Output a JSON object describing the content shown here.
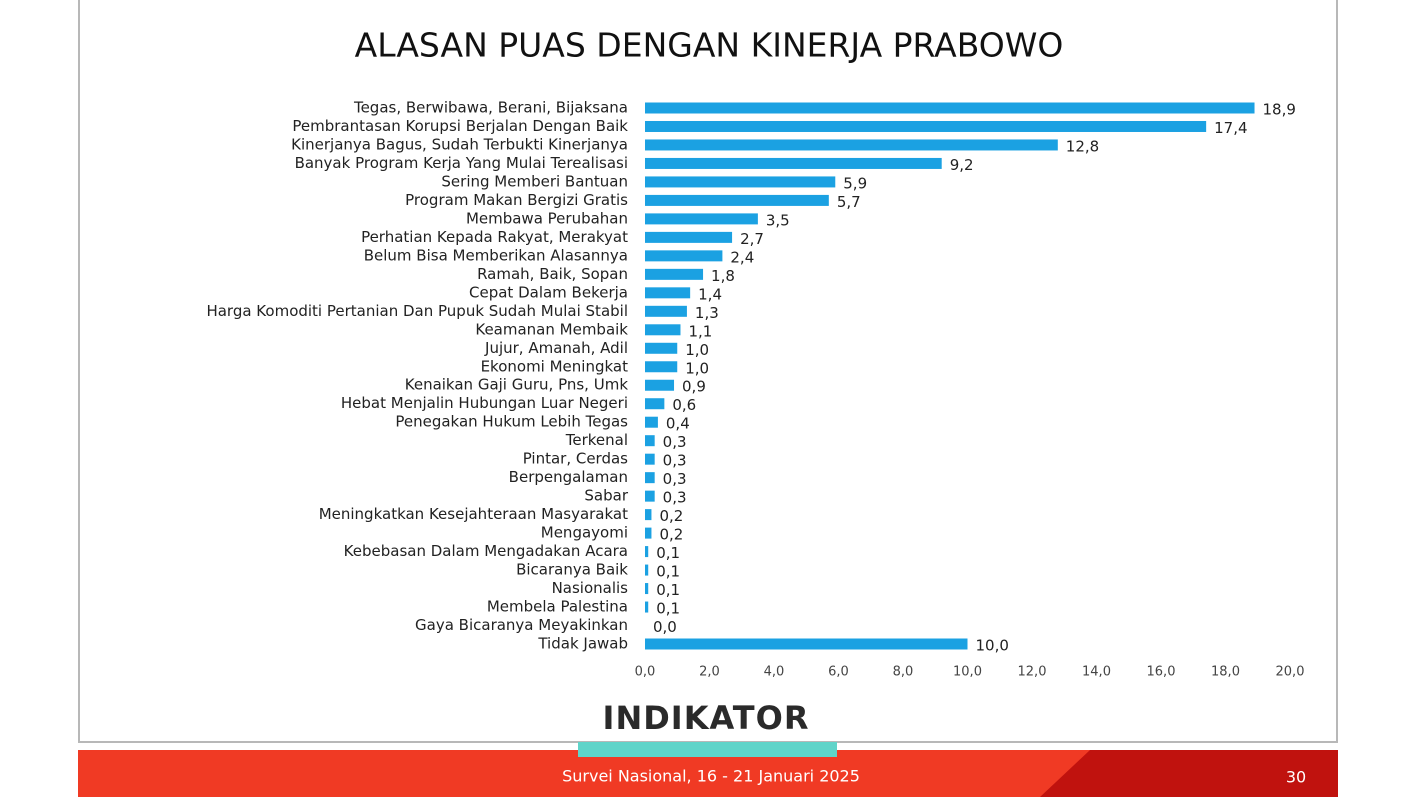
{
  "chart_data": {
    "type": "hbar",
    "title": "ALASAN PUAS DENGAN KINERJA PRABOWO",
    "categories": [
      "Tegas, Berwibawa, Berani, Bijaksana",
      "Pembrantasan Korupsi Berjalan Dengan Baik",
      "Kinerjanya Bagus, Sudah Terbukti Kinerjanya",
      "Banyak Program Kerja Yang Mulai Terealisasi",
      "Sering Memberi Bantuan",
      "Program Makan Bergizi Gratis",
      "Membawa Perubahan",
      "Perhatian Kepada Rakyat, Merakyat",
      "Belum Bisa Memberikan Alasannya",
      "Ramah, Baik, Sopan",
      "Cepat Dalam Bekerja",
      "Harga Komoditi Pertanian Dan Pupuk Sudah Mulai Stabil",
      "Keamanan Membaik",
      "Jujur, Amanah, Adil",
      "Ekonomi Meningkat",
      "Kenaikan Gaji Guru, Pns, Umk",
      "Hebat Menjalin Hubungan Luar Negeri",
      "Penegakan Hukum Lebih Tegas",
      "Terkenal",
      "Pintar, Cerdas",
      "Berpengalaman",
      "Sabar",
      "Meningkatkan Kesejahteraan Masyarakat",
      "Mengayomi",
      "Kebebasan Dalam Mengadakan Acara",
      "Bicaranya Baik",
      "Nasionalis",
      "Membela Palestina",
      "Gaya Bicaranya Meyakinkan",
      "Tidak Jawab"
    ],
    "values": [
      18.9,
      17.4,
      12.8,
      9.2,
      5.9,
      5.7,
      3.5,
      2.7,
      2.4,
      1.8,
      1.4,
      1.3,
      1.1,
      1.0,
      1.0,
      0.9,
      0.6,
      0.4,
      0.3,
      0.3,
      0.3,
      0.3,
      0.2,
      0.2,
      0.1,
      0.1,
      0.1,
      0.1,
      0.0,
      10.0
    ],
    "value_labels": [
      "18,9",
      "17,4",
      "12,8",
      "9,2",
      "5,9",
      "5,7",
      "3,5",
      "2,7",
      "2,4",
      "1,8",
      "1,4",
      "1,3",
      "1,1",
      "1,0",
      "1,0",
      "0,9",
      "0,6",
      "0,4",
      "0,3",
      "0,3",
      "0,3",
      "0,3",
      "0,2",
      "0,2",
      "0,1",
      "0,1",
      "0,1",
      "0,1",
      "0,0",
      "10,0"
    ],
    "color": "#1ba1e2",
    "xlim": [
      0,
      20
    ],
    "xticks": [
      {
        "value": 0,
        "label": "0,0"
      },
      {
        "value": 2,
        "label": "2,0"
      },
      {
        "value": 4,
        "label": "4,0"
      },
      {
        "value": 6,
        "label": "6,0"
      },
      {
        "value": 8,
        "label": "8,0"
      },
      {
        "value": 10,
        "label": "10,0"
      },
      {
        "value": 12,
        "label": "12,0"
      },
      {
        "value": 14,
        "label": "14,0"
      },
      {
        "value": 16,
        "label": "16,0"
      },
      {
        "value": 18,
        "label": "18,0"
      },
      {
        "value": 20,
        "label": "20,0"
      }
    ],
    "grid": false
  },
  "logo": "INDIKATOR",
  "footer": "Survei Nasional, 16 - 21 Januari 2025",
  "page_number": "30"
}
